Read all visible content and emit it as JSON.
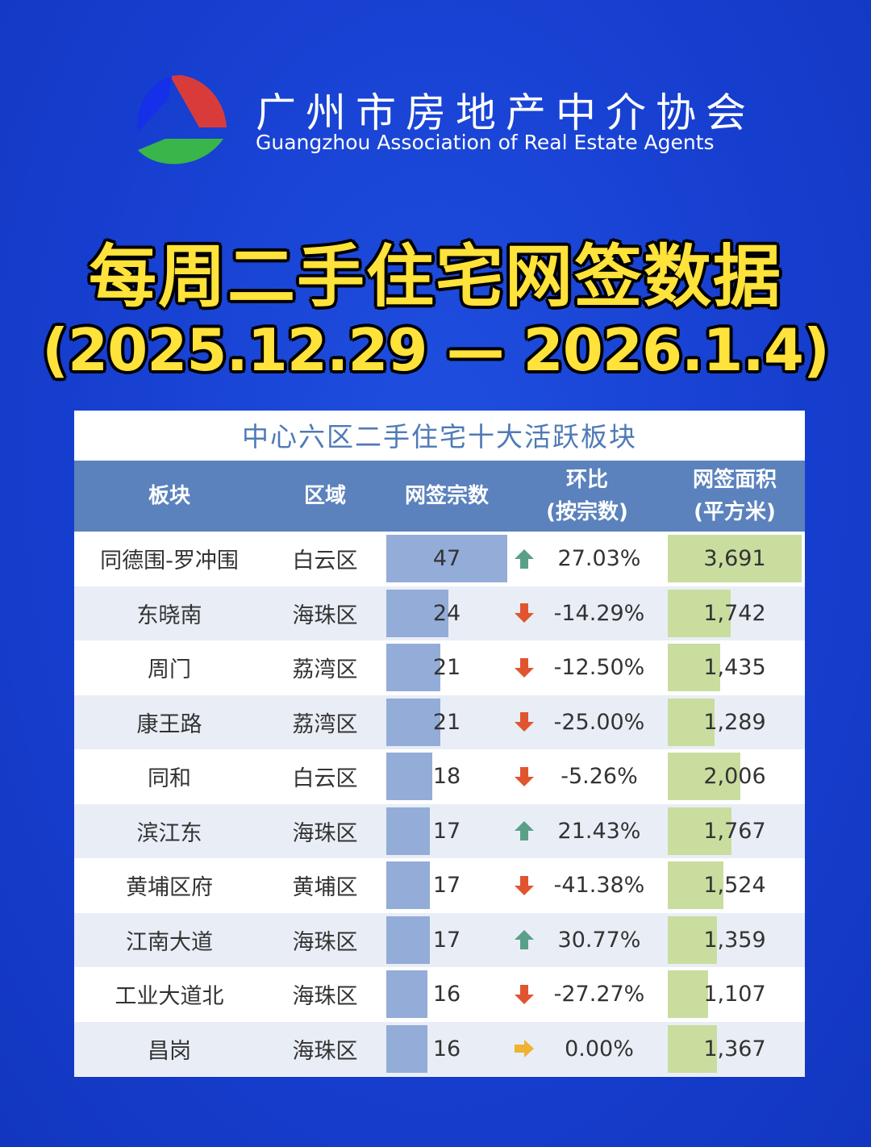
{
  "org": {
    "name_cn": "广州市房地产中介协会",
    "name_en": "Guangzhou Association of Real Estate Agents"
  },
  "headline": {
    "title": "每周二手住宅网签数据",
    "period": "(2025.12.29 — 2026.1.4)"
  },
  "table": {
    "title": "中心六区二手住宅十大活跃板块",
    "headers": {
      "block": "板块",
      "district": "区域",
      "count": "网签宗数",
      "change_1": "环比",
      "change_2": "(按宗数)",
      "area_1": "网签面积",
      "area_2": "(平方米)"
    },
    "rows": [
      {
        "block": "同德围-罗冲围",
        "district": "白云区",
        "count": "47",
        "count_value": 47,
        "change": "27.03%",
        "trend": "up",
        "area": "3,691",
        "area_value": 3691
      },
      {
        "block": "东晓南",
        "district": "海珠区",
        "count": "24",
        "count_value": 24,
        "change": "-14.29%",
        "trend": "down",
        "area": "1,742",
        "area_value": 1742
      },
      {
        "block": "周门",
        "district": "荔湾区",
        "count": "21",
        "count_value": 21,
        "change": "-12.50%",
        "trend": "down",
        "area": "1,435",
        "area_value": 1435
      },
      {
        "block": "康王路",
        "district": "荔湾区",
        "count": "21",
        "count_value": 21,
        "change": "-25.00%",
        "trend": "down",
        "area": "1,289",
        "area_value": 1289
      },
      {
        "block": "同和",
        "district": "白云区",
        "count": "18",
        "count_value": 18,
        "change": "-5.26%",
        "trend": "down",
        "area": "2,006",
        "area_value": 2006
      },
      {
        "block": "滨江东",
        "district": "海珠区",
        "count": "17",
        "count_value": 17,
        "change": "21.43%",
        "trend": "up",
        "area": "1,767",
        "area_value": 1767
      },
      {
        "block": "黄埔区府",
        "district": "黄埔区",
        "count": "17",
        "count_value": 17,
        "change": "-41.38%",
        "trend": "down",
        "area": "1,524",
        "area_value": 1524
      },
      {
        "block": "江南大道",
        "district": "海珠区",
        "count": "17",
        "count_value": 17,
        "change": "30.77%",
        "trend": "up",
        "area": "1,359",
        "area_value": 1359
      },
      {
        "block": "工业大道北",
        "district": "海珠区",
        "count": "16",
        "count_value": 16,
        "change": "-27.27%",
        "trend": "down",
        "area": "1,107",
        "area_value": 1107
      },
      {
        "block": "昌岗",
        "district": "海珠区",
        "count": "16",
        "count_value": 16,
        "change": "0.00%",
        "trend": "flat",
        "area": "1,367",
        "area_value": 1367
      }
    ],
    "max_count": 47,
    "max_area": 3691
  },
  "colors": {
    "background": "#173fd0",
    "headline": "#ffe23a",
    "header_bg": "#5b82bd",
    "count_bar": "#93acd8",
    "area_bar": "#c9dd9f",
    "up_arrow": "#5aa088",
    "down_arrow": "#e0552f",
    "flat_arrow": "#f0b233"
  }
}
